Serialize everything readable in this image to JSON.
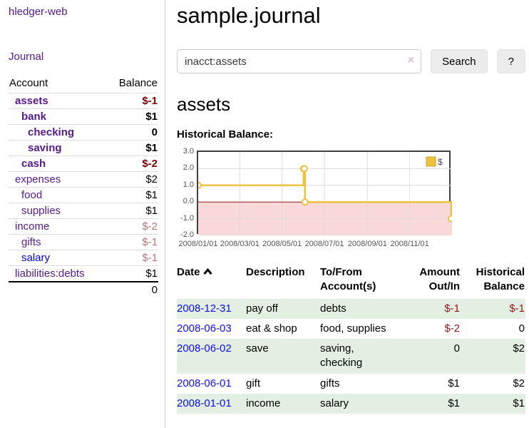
{
  "app": {
    "title": "hledger-web"
  },
  "sidebar": {
    "journal_link": "Journal",
    "accounts": {
      "header_account": "Account",
      "header_balance": "Balance",
      "rows": [
        {
          "account": "assets",
          "indent": 1,
          "bold": true,
          "link_color": "purple",
          "balance": "$-1",
          "balance_style": "neg-strong"
        },
        {
          "account": "bank",
          "indent": 2,
          "bold": true,
          "link_color": "purple",
          "balance": "$1",
          "balance_style": "strong"
        },
        {
          "account": "checking",
          "indent": 3,
          "bold": true,
          "link_color": "purple",
          "balance": "0",
          "balance_style": "strong"
        },
        {
          "account": "saving",
          "indent": 3,
          "bold": true,
          "link_color": "purple",
          "balance": "$1",
          "balance_style": "strong"
        },
        {
          "account": "cash",
          "indent": 2,
          "bold": true,
          "link_color": "purple",
          "balance": "$-2",
          "balance_style": "neg-strong"
        },
        {
          "account": "expenses",
          "indent": 1,
          "bold": false,
          "link_color": "purple",
          "balance": "$2",
          "balance_style": "plain"
        },
        {
          "account": "food",
          "indent": 2,
          "bold": false,
          "link_color": "purple",
          "balance": "$1",
          "balance_style": "plain"
        },
        {
          "account": "supplies",
          "indent": 2,
          "bold": false,
          "link_color": "purple",
          "balance": "$1",
          "balance_style": "plain"
        },
        {
          "account": "income",
          "indent": 1,
          "bold": false,
          "link_color": "purple",
          "balance": "$-2",
          "balance_style": "neg-muted"
        },
        {
          "account": "gifts",
          "indent": 2,
          "bold": false,
          "link_color": "purple",
          "balance": "$-1",
          "balance_style": "neg-muted"
        },
        {
          "account": "salary",
          "indent": 2,
          "bold": false,
          "link_color": "blue",
          "balance": "$-1",
          "balance_style": "neg-muted"
        },
        {
          "account": "liabilities:debts",
          "indent": 1,
          "bold": false,
          "link_color": "purple",
          "balance": "$1",
          "balance_style": "plain"
        }
      ],
      "total": "0"
    }
  },
  "main": {
    "title": "sample.journal",
    "search": {
      "value": "inacct:assets",
      "clear_icon": "×",
      "clear_icon_name": "clear-search-icon",
      "button_label": "Search",
      "help_label": "?"
    },
    "account_heading": "assets",
    "section_label": "Historical Balance:"
  },
  "chart_data": {
    "type": "line",
    "title": "Historical Balance",
    "series": [
      {
        "name": "$",
        "color": "#edc240",
        "step": "after",
        "points": [
          [
            "2008-01-01",
            1
          ],
          [
            "2008-06-01",
            2
          ],
          [
            "2008-06-02",
            2
          ],
          [
            "2008-06-03",
            0
          ],
          [
            "2008-12-31",
            -1
          ]
        ]
      }
    ],
    "xlim": [
      "2008-01-01",
      "2009-01-01"
    ],
    "ylim": [
      -2,
      3
    ],
    "y_ticks": [
      3.0,
      2.0,
      1.0,
      0.0,
      -1.0,
      -2.0
    ],
    "x_ticks": [
      {
        "date": "2008-01-01",
        "label": "2008/01/01"
      },
      {
        "date": "2008-03-01",
        "label": "2008/03/01"
      },
      {
        "date": "2008-05-01",
        "label": "2008/05/01"
      },
      {
        "date": "2008-07-01",
        "label": "2008/07/01"
      },
      {
        "date": "2008-09-01",
        "label": "2008/09/01"
      },
      {
        "date": "2008-11-01",
        "label": "2008/11/01"
      }
    ],
    "grid": true,
    "legend": {
      "label": "$",
      "position": "top-right"
    },
    "negative_region_color": "#f8d8d8",
    "zero_line_color": "#8c1717",
    "grid_color": "#dcdcdc",
    "axis_text_color": "#545454"
  },
  "register": {
    "headers": {
      "date": "Date",
      "sort_icon_name": "chevron-up-icon",
      "description": "Description",
      "accounts": "To/From\nAccount(s)",
      "amount": "Amount\nOut/In",
      "balance": "Historical\nBalance"
    },
    "rows": [
      {
        "date": "2008-12-31",
        "description": "pay off",
        "accounts": "debts",
        "amount": "$-1",
        "amount_negative": true,
        "balance": "$-1",
        "balance_negative": true,
        "shaded": true
      },
      {
        "date": "2008-06-03",
        "description": "eat & shop",
        "accounts": "food, supplies",
        "amount": "$-2",
        "amount_negative": true,
        "balance": "0",
        "balance_negative": false,
        "shaded": false
      },
      {
        "date": "2008-06-02",
        "description": "save",
        "accounts": "saving,\nchecking",
        "amount": "0",
        "amount_negative": false,
        "balance": "$2",
        "balance_negative": false,
        "shaded": true
      },
      {
        "date": "2008-06-01",
        "description": "gift",
        "accounts": "gifts",
        "amount": "$1",
        "amount_negative": false,
        "balance": "$2",
        "balance_negative": false,
        "shaded": false
      },
      {
        "date": "2008-01-01",
        "description": "income",
        "accounts": "salary",
        "amount": "$1",
        "amount_negative": false,
        "balance": "$1",
        "balance_negative": false,
        "shaded": true
      }
    ]
  }
}
